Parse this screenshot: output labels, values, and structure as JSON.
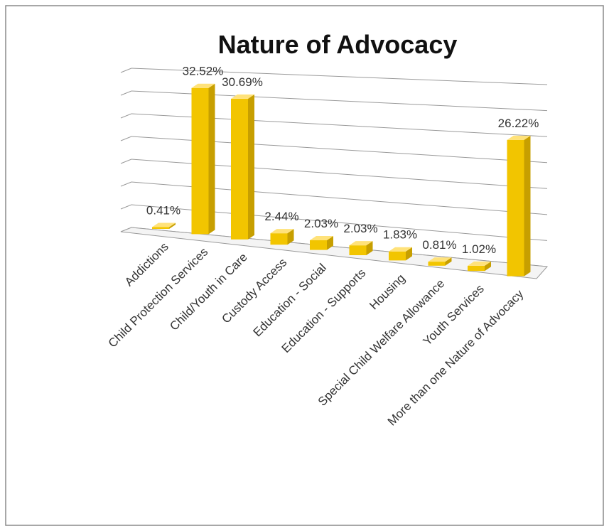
{
  "chart_data": {
    "type": "bar3d",
    "title": "Nature of Advocacy",
    "categories": [
      "Addictions",
      "Child Protection Services",
      "Child/Youth in Care",
      "Custody Access",
      "Education - Social",
      "Education - Supports",
      "Housing",
      "Special Child Welfare Allowance",
      "Youth Services",
      "More than one Nature of Advocacy"
    ],
    "values": [
      0.41,
      32.52,
      30.69,
      2.44,
      2.03,
      2.03,
      1.83,
      0.81,
      1.02,
      26.22
    ],
    "value_labels": [
      "0.41%",
      "32.52%",
      "30.69%",
      "2.44%",
      "2.03%",
      "2.03%",
      "1.83%",
      "0.81%",
      "1.02%",
      "26.22%"
    ],
    "color": "#f2c500",
    "ylim": [
      0,
      35
    ],
    "yticks": [
      0,
      5,
      10,
      15,
      20,
      25,
      30,
      35
    ],
    "show_tick_labels": false,
    "grid": true
  }
}
